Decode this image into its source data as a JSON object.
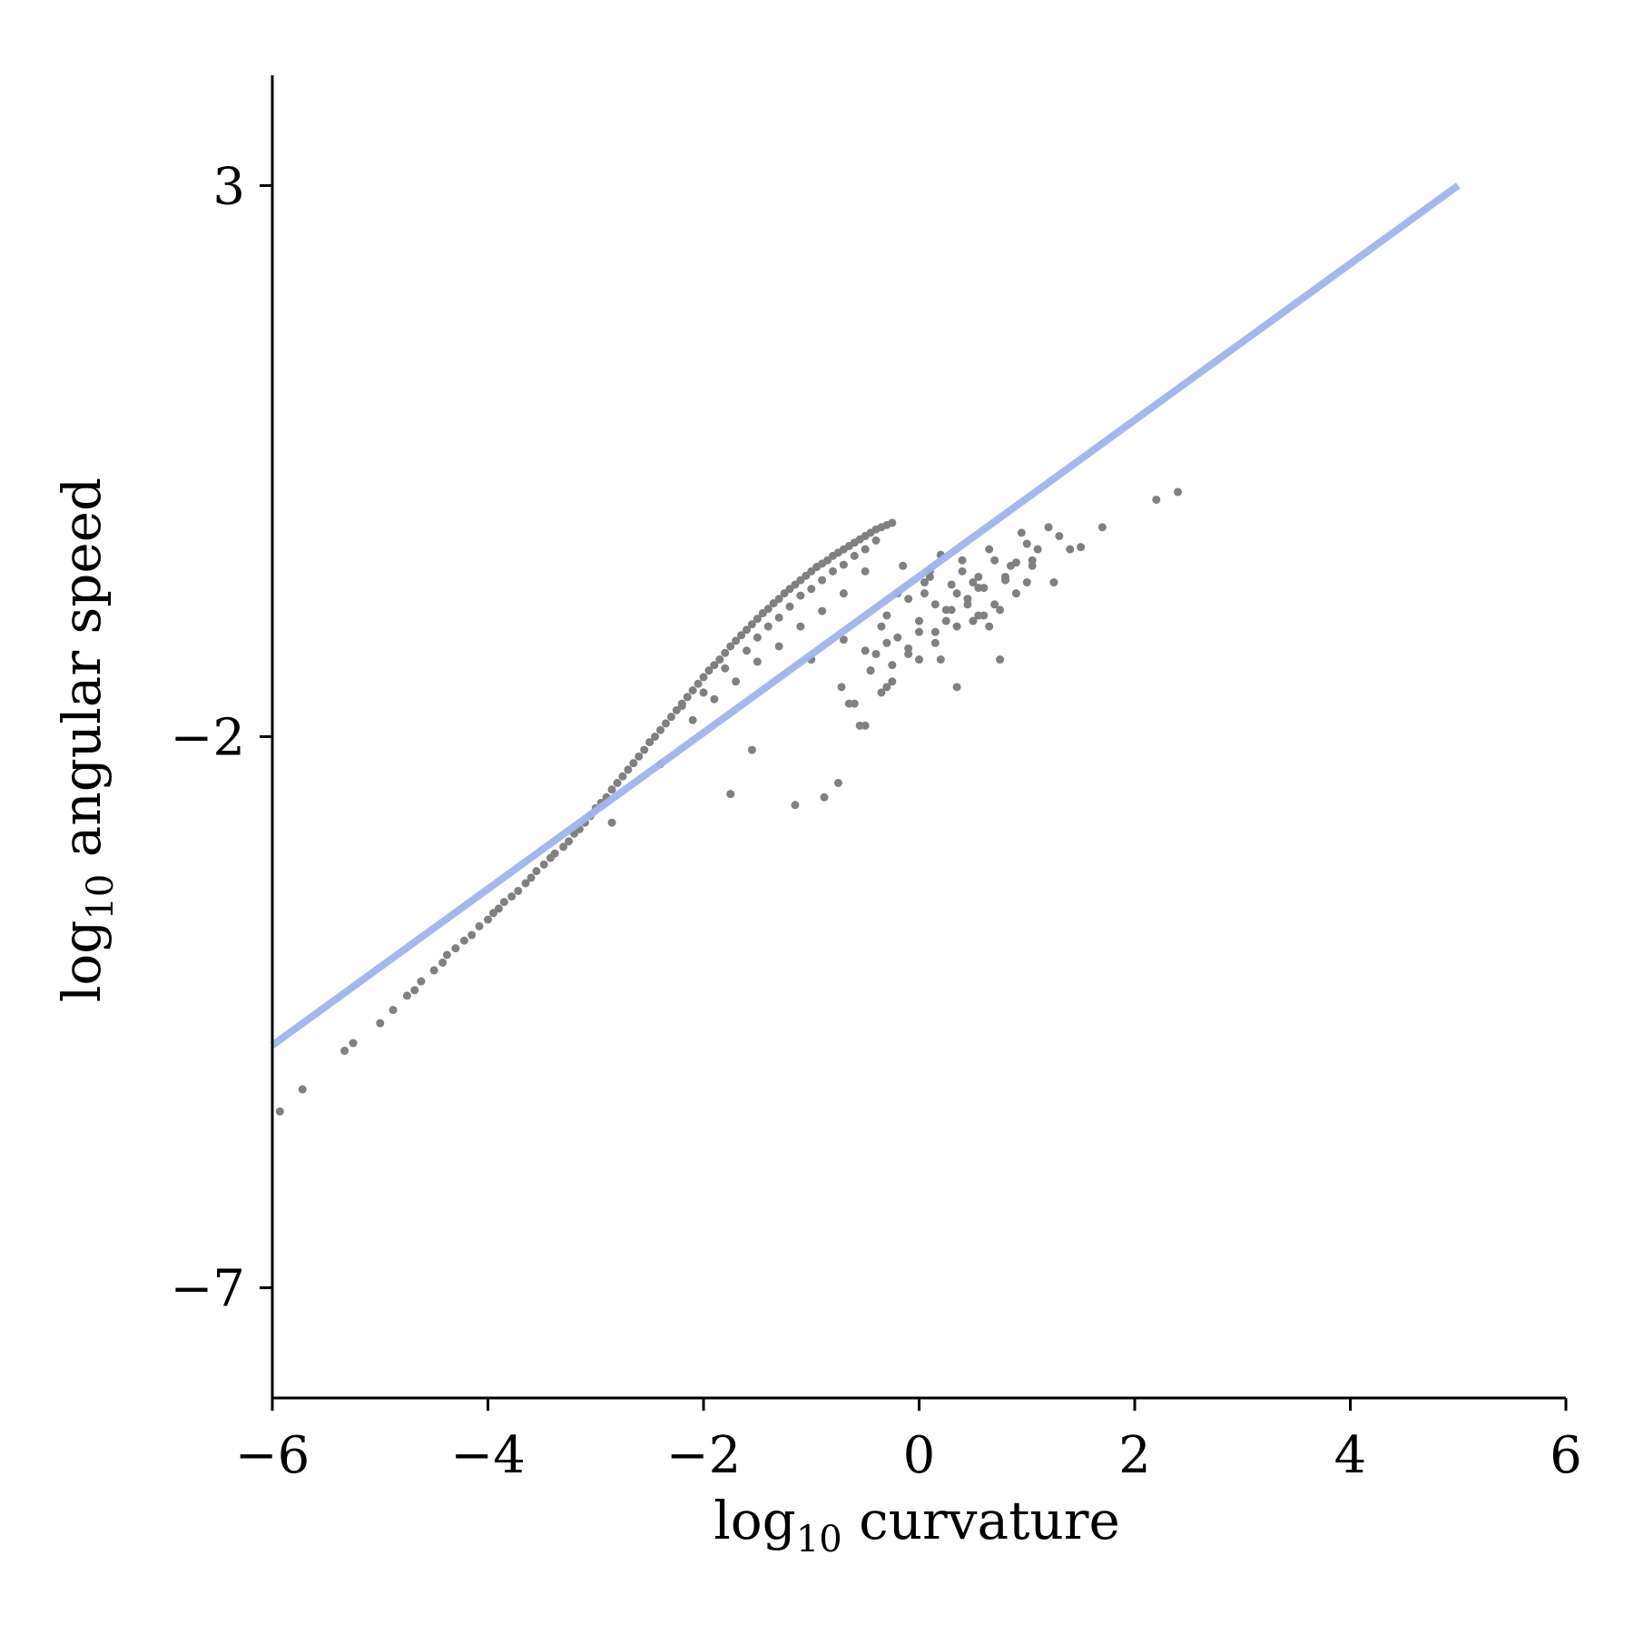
{
  "colors": {
    "points": "#808080",
    "fit_line": "#a0b4ec",
    "axes": "#000000",
    "background": "#ffffff"
  },
  "chart_data": {
    "type": "scatter",
    "xlabel": {
      "main": "log",
      "sub": "10",
      "rest": " curvature"
    },
    "ylabel": {
      "main": "log",
      "sub": "10",
      "rest": " angular speed"
    },
    "xlim": [
      -6,
      6
    ],
    "ylim": [
      -8,
      4
    ],
    "xticks": [
      -6,
      -4,
      -2,
      0,
      2,
      4,
      6
    ],
    "yticks": [
      -7,
      -2,
      3
    ],
    "x_tick_labels": [
      "−6",
      "−4",
      "−2",
      "0",
      "2",
      "4",
      "6"
    ],
    "y_tick_labels": [
      "−7",
      "−2",
      "3"
    ],
    "grid": false,
    "legend": "none",
    "fit_line": {
      "x": [
        -6.0,
        5.0
      ],
      "y": [
        -4.8,
        3.0
      ]
    },
    "scatter": {
      "x": [
        -5.93,
        -5.72,
        -5.33,
        -5.25,
        -5.0,
        -4.88,
        -4.75,
        -4.68,
        -4.62,
        -4.5,
        -4.42,
        -4.38,
        -4.3,
        -4.22,
        -4.15,
        -4.08,
        -4.0,
        -3.95,
        -3.9,
        -3.85,
        -3.78,
        -3.72,
        -3.65,
        -3.6,
        -3.55,
        -3.48,
        -3.42,
        -3.38,
        -3.3,
        -3.25,
        -3.2,
        -3.15,
        -3.1,
        -3.05,
        -3.0,
        -2.95,
        -2.9,
        -2.85,
        -2.8,
        -2.75,
        -2.7,
        -2.65,
        -2.6,
        -2.55,
        -2.5,
        -2.45,
        -2.4,
        -2.35,
        -2.3,
        -2.25,
        -2.2,
        -2.15,
        -2.1,
        -2.05,
        -2.0,
        -1.95,
        -1.9,
        -1.85,
        -1.8,
        -1.75,
        -1.7,
        -1.65,
        -1.6,
        -1.55,
        -1.5,
        -1.45,
        -1.4,
        -1.35,
        -1.3,
        -1.25,
        -1.2,
        -1.15,
        -1.1,
        -1.05,
        -1.0,
        -0.95,
        -0.9,
        -0.85,
        -0.8,
        -0.75,
        -0.7,
        -0.65,
        -0.6,
        -0.55,
        -0.5,
        -0.45,
        -0.4,
        -0.35,
        -0.3,
        -0.25,
        -2.2,
        -2.0,
        -1.8,
        -1.6,
        -1.5,
        -1.4,
        -1.3,
        -1.2,
        -1.1,
        -1.0,
        -0.9,
        -0.8,
        -0.7,
        -0.6,
        -0.5,
        -0.4,
        -2.1,
        -1.9,
        -1.7,
        -1.5,
        -1.3,
        -1.1,
        -0.9,
        -0.7,
        -0.5,
        -2.85,
        -2.4,
        -1.75,
        -1.55,
        -1.15,
        -0.88,
        -0.75,
        -1.0,
        -0.7,
        -0.72,
        -0.65,
        -0.55,
        -0.5,
        -0.45,
        -0.35,
        -0.3,
        -0.2,
        -0.1,
        0.0,
        0.1,
        0.15,
        0.2,
        0.3,
        0.35,
        0.4,
        0.45,
        0.5,
        0.55,
        0.6,
        0.65,
        0.7,
        0.75,
        0.8,
        0.85,
        0.9,
        0.95,
        1.0,
        1.05,
        1.1,
        1.2,
        1.3,
        1.4,
        1.5,
        1.7,
        2.2,
        2.4,
        -0.45,
        -0.4,
        -0.3,
        -0.25,
        -0.2,
        -0.1,
        0.0,
        0.05,
        0.15,
        0.25,
        0.35,
        0.45,
        0.55,
        0.65,
        -0.35,
        -0.15,
        0.05,
        0.2,
        0.4,
        0.6,
        0.75,
        0.9,
        1.0,
        -0.6,
        -0.5,
        -0.3,
        0.1,
        0.3,
        0.5,
        0.7,
        -0.1,
        0.15,
        0.35,
        0.55,
        0.8,
        1.05,
        1.25,
        -0.25,
        0.0,
        0.25
      ],
      "y": [
        -5.4,
        -5.2,
        -4.85,
        -4.78,
        -4.6,
        -4.48,
        -4.35,
        -4.3,
        -4.22,
        -4.12,
        -4.05,
        -3.98,
        -3.92,
        -3.85,
        -3.8,
        -3.72,
        -3.66,
        -3.6,
        -3.56,
        -3.5,
        -3.45,
        -3.4,
        -3.33,
        -3.28,
        -3.22,
        -3.16,
        -3.1,
        -3.06,
        -3.0,
        -2.95,
        -2.88,
        -2.84,
        -2.78,
        -2.72,
        -2.65,
        -2.6,
        -2.55,
        -2.48,
        -2.42,
        -2.36,
        -2.3,
        -2.24,
        -2.18,
        -2.12,
        -2.05,
        -2.0,
        -1.94,
        -1.88,
        -1.82,
        -1.76,
        -1.7,
        -1.64,
        -1.58,
        -1.52,
        -1.46,
        -1.4,
        -1.35,
        -1.3,
        -1.24,
        -1.18,
        -1.13,
        -1.08,
        -1.03,
        -0.98,
        -0.93,
        -0.88,
        -0.84,
        -0.79,
        -0.75,
        -0.7,
        -0.66,
        -0.62,
        -0.58,
        -0.54,
        -0.5,
        -0.46,
        -0.43,
        -0.4,
        -0.36,
        -0.33,
        -0.3,
        -0.27,
        -0.24,
        -0.21,
        -0.18,
        -0.15,
        -0.12,
        -0.1,
        -0.08,
        -0.06,
        -1.72,
        -1.6,
        -1.38,
        -1.22,
        -1.1,
        -1.0,
        -0.92,
        -0.82,
        -0.72,
        -0.66,
        -0.58,
        -0.5,
        -0.44,
        -0.36,
        -0.3,
        -0.22,
        -1.85,
        -1.66,
        -1.5,
        -1.32,
        -1.18,
        -1.0,
        -0.86,
        -0.7,
        -0.5,
        -2.78,
        -2.25,
        -2.52,
        -2.12,
        -2.62,
        -2.55,
        -2.42,
        -1.3,
        -1.12,
        -1.55,
        -1.7,
        -1.9,
        -1.22,
        -1.4,
        -1.6,
        -0.9,
        -0.7,
        -1.25,
        -1.05,
        -0.5,
        -0.8,
        -1.3,
        -0.62,
        -1.55,
        -0.4,
        -0.8,
        -0.95,
        -0.55,
        -0.65,
        -0.3,
        -0.8,
        -0.85,
        -0.58,
        -0.45,
        -0.42,
        -0.15,
        -0.25,
        -0.45,
        -0.3,
        -0.1,
        -0.18,
        -0.3,
        -0.28,
        -0.1,
        0.15,
        0.22,
        -1.4,
        -1.25,
        -1.55,
        -1.5,
        -1.1,
        -1.2,
        -0.95,
        -0.7,
        -1.05,
        -0.85,
        -1.0,
        -0.75,
        -0.65,
        -1.0,
        -1.0,
        -0.45,
        -0.6,
        -0.35,
        -0.5,
        -0.9,
        -1.3,
        -0.7,
        -0.6,
        -1.7,
        -1.9,
        -1.15,
        -0.55,
        -0.85,
        -0.6,
        -0.4,
        -0.75,
        -1.15,
        -0.7,
        -0.9,
        -0.55,
        -0.4,
        -0.6,
        -1.35,
        -1.3,
        -0.95
      ]
    }
  }
}
